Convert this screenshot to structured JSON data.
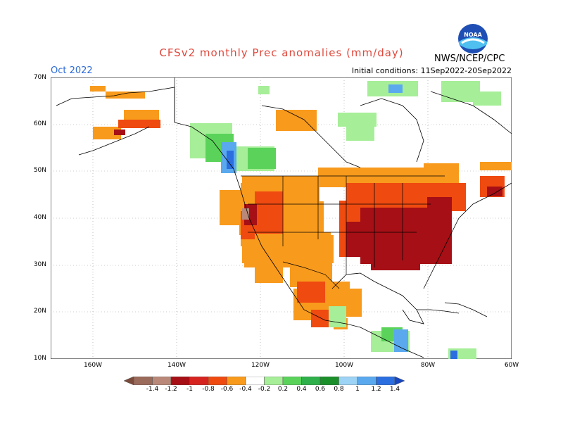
{
  "header": {
    "title": "CFSv2 monthly Prec anomalies (mm/day)",
    "agency": "NWS/NCEP/CPC",
    "logo_text": "NOAA",
    "month": "Oct 2022",
    "initial_conditions": "Initial conditions: 11Sep2022-20Sep2022"
  },
  "map": {
    "lat_labels": [
      "70N",
      "60N",
      "50N",
      "40N",
      "30N",
      "20N",
      "10N"
    ],
    "lon_labels": [
      "160W",
      "140W",
      "120W",
      "100W",
      "80W",
      "60W"
    ],
    "lat_range": [
      10,
      70
    ],
    "lon_range": [
      -170,
      -60
    ],
    "grid": "dotted"
  },
  "legend": {
    "labels": [
      "-1.4",
      "-1.2",
      "-1",
      "-0.8",
      "-0.6",
      "-0.4",
      "-0.2",
      "0.2",
      "0.4",
      "0.6",
      "0.8",
      "1",
      "1.2",
      "1.4"
    ],
    "colors": [
      "#7a4a3a",
      "#9a6a5a",
      "#b98878",
      "#a50f15",
      "#d62420",
      "#ef4a10",
      "#f89a1c",
      "#ffffff",
      "#a6ee98",
      "#5bd35b",
      "#2fb04a",
      "#1a8f2a",
      "#9dd3f5",
      "#5aa9ef",
      "#2a6ee0",
      "#1747c0"
    ]
  }
}
